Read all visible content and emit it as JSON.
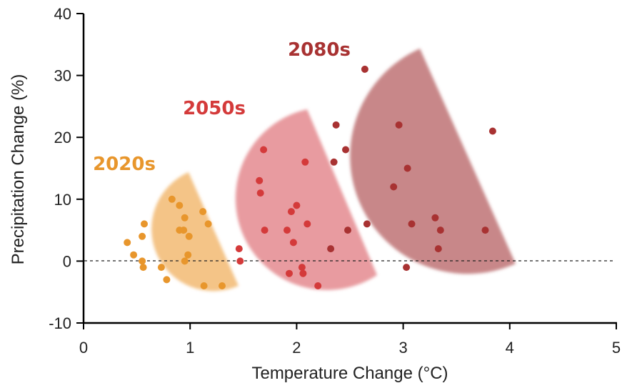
{
  "chart_data": {
    "type": "scatter",
    "title": "",
    "xlabel": "Temperature Change (°C)",
    "ylabel": "Precipitation Change (%)",
    "xlim": [
      0,
      5
    ],
    "ylim": [
      -10,
      40
    ],
    "xticks": [
      "0",
      "1",
      "2",
      "3",
      "4",
      "5"
    ],
    "yticks": [
      "-10",
      "0",
      "10",
      "20",
      "30",
      "40"
    ],
    "grid": false,
    "reference_line": {
      "y": 0,
      "style": "dashed"
    },
    "series": [
      {
        "name": "2020s",
        "color": "#E8962C",
        "region_color": "#F0B060",
        "points": [
          [
            0.41,
            3
          ],
          [
            0.47,
            1
          ],
          [
            0.55,
            4
          ],
          [
            0.55,
            0
          ],
          [
            0.56,
            -1
          ],
          [
            0.57,
            6
          ],
          [
            0.73,
            -1
          ],
          [
            0.78,
            -3
          ],
          [
            0.83,
            10
          ],
          [
            0.9,
            9
          ],
          [
            0.9,
            5
          ],
          [
            0.94,
            5
          ],
          [
            0.95,
            7
          ],
          [
            0.95,
            0
          ],
          [
            0.98,
            1
          ],
          [
            0.99,
            4
          ],
          [
            1.12,
            8
          ],
          [
            1.13,
            -4
          ],
          [
            1.17,
            6
          ],
          [
            1.3,
            -4
          ]
        ]
      },
      {
        "name": "2050s",
        "color": "#D43A3A",
        "region_color": "#E07A80",
        "points": [
          [
            1.46,
            2
          ],
          [
            1.47,
            0
          ],
          [
            1.65,
            13
          ],
          [
            1.66,
            11
          ],
          [
            1.69,
            18
          ],
          [
            1.7,
            5
          ],
          [
            1.91,
            5
          ],
          [
            1.93,
            -2
          ],
          [
            1.95,
            8
          ],
          [
            1.97,
            3
          ],
          [
            2.0,
            9
          ],
          [
            2.05,
            -1
          ],
          [
            2.06,
            -2
          ],
          [
            2.08,
            16
          ],
          [
            2.1,
            6
          ],
          [
            2.2,
            -4
          ]
        ]
      },
      {
        "name": "2080s",
        "color": "#A83232",
        "region_color": "#B66062",
        "points": [
          [
            2.32,
            2
          ],
          [
            2.35,
            16
          ],
          [
            2.37,
            22
          ],
          [
            2.46,
            18
          ],
          [
            2.48,
            5
          ],
          [
            2.64,
            31
          ],
          [
            2.66,
            6
          ],
          [
            2.91,
            12
          ],
          [
            2.96,
            22
          ],
          [
            3.03,
            -1
          ],
          [
            3.04,
            15
          ],
          [
            3.08,
            6
          ],
          [
            3.3,
            7
          ],
          [
            3.33,
            2
          ],
          [
            3.35,
            5
          ],
          [
            3.77,
            5
          ],
          [
            3.84,
            21
          ]
        ]
      }
    ]
  }
}
